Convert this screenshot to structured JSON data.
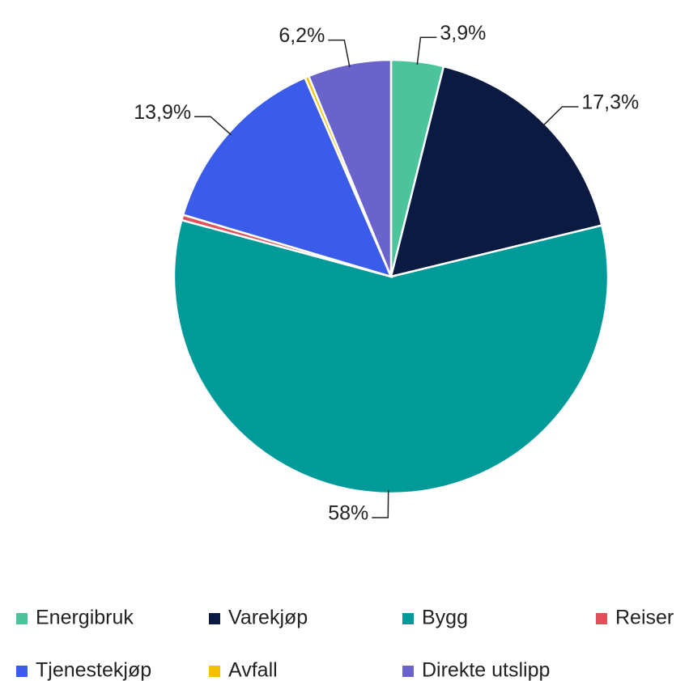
{
  "chart_data": {
    "type": "pie",
    "categories": [
      "Energibruk",
      "Varekjøp",
      "Bygg",
      "Reiser",
      "Tjenestekjøp",
      "Avfall",
      "Direkte utslipp"
    ],
    "values": [
      3.9,
      17.3,
      58,
      0.4,
      13.9,
      0.3,
      6.2
    ],
    "value_labels": [
      "3,9%",
      "17,3%",
      "58%",
      null,
      "13,9%",
      null,
      "6,2%"
    ],
    "colors": [
      "#4bc49b",
      "#0b1a40",
      "#009a99",
      "#e0505a",
      "#3b5bea",
      "#f5c000",
      "#6a63cc"
    ],
    "legend": "bottom"
  }
}
